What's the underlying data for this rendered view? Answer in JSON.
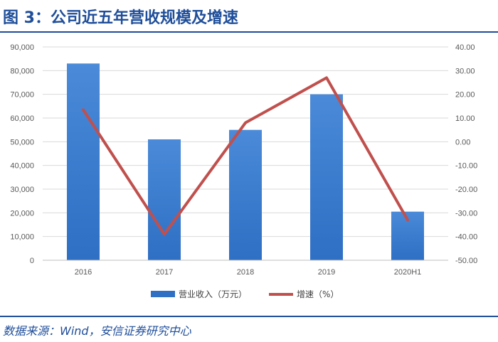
{
  "figure_title": "图 3：公司近五年营收规模及增速",
  "source_note": "数据来源：Wind，安信证券研究中心",
  "colors": {
    "bar": "#2f6fc4",
    "line": "#c0504d",
    "title": "#1f4e9a",
    "grid": "#d9d9d9"
  },
  "chart_data": {
    "type": "bar",
    "categories": [
      "2016",
      "2017",
      "2018",
      "2019",
      "2020H1"
    ],
    "series": [
      {
        "name": "营业收入（万元）",
        "type": "bar",
        "axis": "left",
        "values": [
          83000,
          51000,
          55000,
          70000,
          20500
        ]
      },
      {
        "name": "增速（%）",
        "type": "line",
        "axis": "right",
        "values": [
          13.5,
          -39.0,
          8.0,
          27.0,
          -33.0
        ]
      }
    ],
    "y_left": {
      "min": 0,
      "max": 90000,
      "step": 10000,
      "tick_labels": [
        "0",
        "10,000",
        "20,000",
        "30,000",
        "40,000",
        "50,000",
        "60,000",
        "70,000",
        "80,000",
        "90,000"
      ]
    },
    "y_right": {
      "min": -50,
      "max": 40,
      "step": 10,
      "tick_labels": [
        "-50.00",
        "-40.00",
        "-30.00",
        "-20.00",
        "-10.00",
        "0.00",
        "10.00",
        "20.00",
        "30.00",
        "40.00"
      ]
    },
    "grid": true,
    "legend": "bottom-center"
  }
}
